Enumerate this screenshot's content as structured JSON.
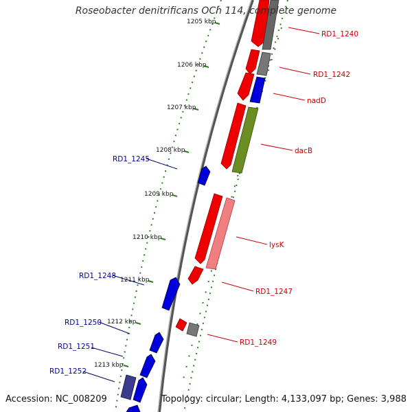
{
  "title": "Roseobacter denitrificans OCh 114, complete genome",
  "accession": "Accession: NC_008209",
  "topology": "Topology: circular; Length: 4,133,097 bp; Genes: 3,988",
  "colors": {
    "forward_gene_label": "#cc0000",
    "reverse_gene_label": "#000099",
    "backbone": "#888888",
    "ticks": "#2e7d1e"
  },
  "tick_labels": [
    "1205 kbp",
    "1206 kbp",
    "1207 kbp",
    "1208 kbp",
    "1209 kbp",
    "1210 kbp",
    "1211 kbp",
    "1212 kbp",
    "1213 kbp"
  ],
  "gene_labels": [
    {
      "name": "RD1_1240",
      "strand": "forward"
    },
    {
      "name": "RD1_1242",
      "strand": "forward"
    },
    {
      "name": "nadD",
      "strand": "forward"
    },
    {
      "name": "dacB",
      "strand": "forward"
    },
    {
      "name": "RD1_1245",
      "strand": "reverse"
    },
    {
      "name": "lysK",
      "strand": "forward"
    },
    {
      "name": "RD1_1248",
      "strand": "reverse"
    },
    {
      "name": "RD1_1247",
      "strand": "forward"
    },
    {
      "name": "RD1_1250",
      "strand": "reverse"
    },
    {
      "name": "RD1_1249",
      "strand": "forward"
    },
    {
      "name": "RD1_1251",
      "strand": "reverse"
    },
    {
      "name": "RD1_1252",
      "strand": "reverse"
    }
  ]
}
